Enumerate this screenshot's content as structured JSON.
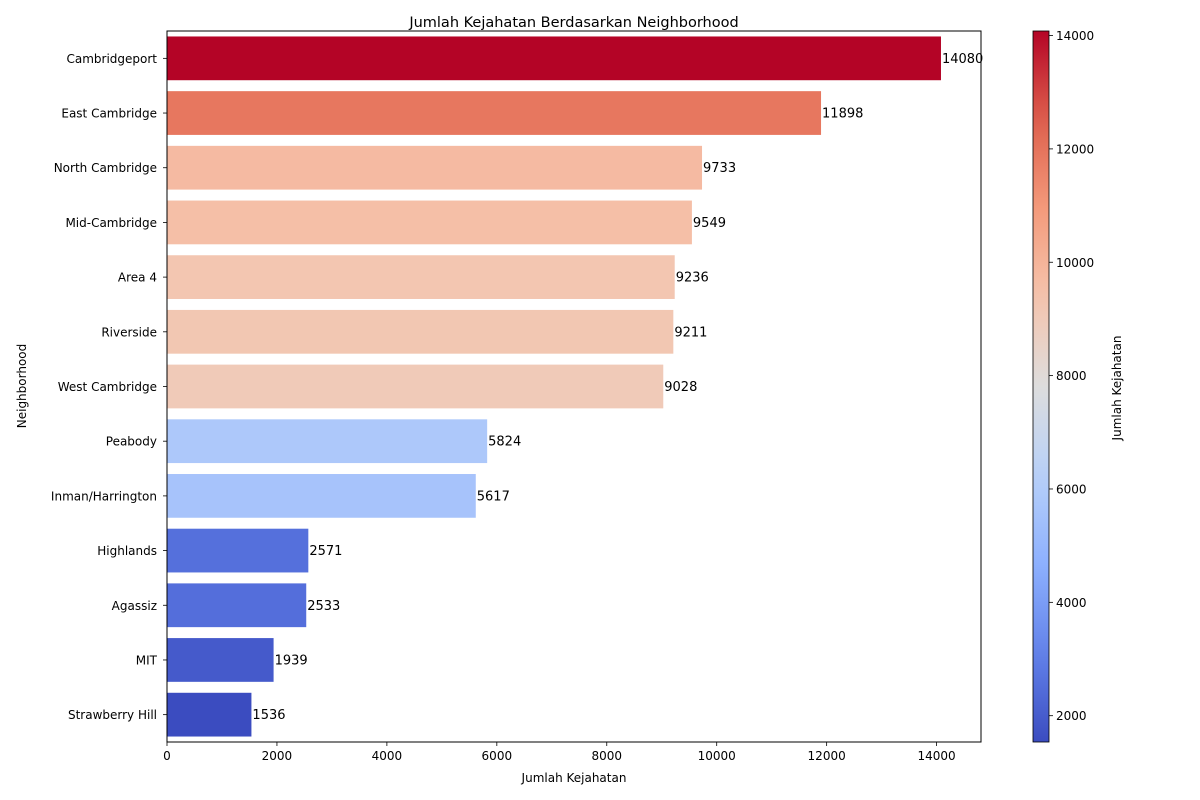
{
  "chart_data": {
    "type": "bar",
    "orientation": "horizontal",
    "title": "Jumlah Kejahatan Berdasarkan Neighborhood",
    "xlabel": "Jumlah Kejahatan",
    "ylabel": "Neighborhood",
    "categories": [
      "Cambridgeport",
      "East Cambridge",
      "North Cambridge",
      "Mid-Cambridge",
      "Area 4",
      "Riverside",
      "West Cambridge",
      "Peabody",
      "Inman/Harrington",
      "Highlands",
      "Agassiz",
      "MIT",
      "Strawberry Hill"
    ],
    "values": [
      14080,
      11898,
      9733,
      9549,
      9236,
      9211,
      9028,
      5824,
      5617,
      2571,
      2533,
      1939,
      1536
    ],
    "xlim": [
      0,
      14808
    ],
    "xticks": [
      0,
      2000,
      4000,
      6000,
      8000,
      10000,
      12000,
      14000
    ],
    "grid": false,
    "colormap": "coolwarm",
    "colorbar": {
      "label": "Jumlah Kejahatan",
      "range": [
        1536,
        14080
      ],
      "ticks": [
        2000,
        4000,
        6000,
        8000,
        10000,
        12000,
        14000
      ]
    }
  }
}
